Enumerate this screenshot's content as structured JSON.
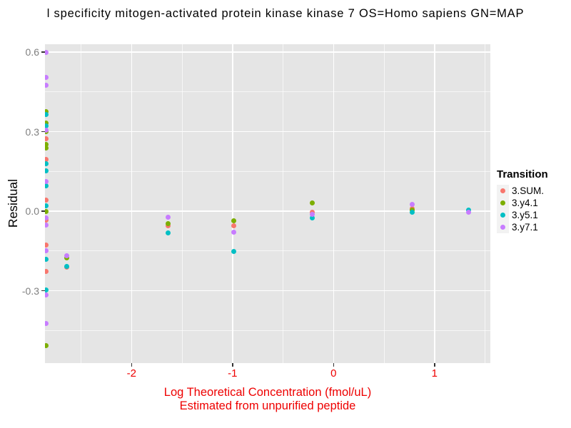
{
  "chart_data": {
    "type": "scatter",
    "title": "l specificity mitogen-activated protein kinase kinase 7 OS=Homo sapiens GN=MAP",
    "ylabel": "Residual",
    "xlabel_line1": "Log Theoretical Concentration (fmol/uL)",
    "xlabel_line2": "Estimated from unpurified peptide",
    "legend_title": "Transition",
    "legend_position": "right",
    "grid": "on",
    "xlim": [
      -2.857,
      1.553
    ],
    "ylim": [
      -0.573,
      0.63
    ],
    "x_ticks": [
      -2,
      -1,
      0,
      1
    ],
    "x_tick_labels": [
      "-2",
      "-1",
      "0",
      "1"
    ],
    "x_minor_ticks": [
      -2.5,
      -1.5,
      -0.5,
      0.5,
      1.5
    ],
    "y_ticks": [
      0.6,
      0.3,
      0.0,
      -0.3
    ],
    "y_tick_labels": [
      "0.6",
      "0.3",
      "0.0",
      "-0.3"
    ],
    "y_minor_ticks": [
      0.45,
      0.15,
      -0.15,
      -0.45
    ],
    "colors": {
      "panel_background": "#e5e5e5",
      "gridline": "#ffffff",
      "x_axis_text": "#ee0000",
      "y_axis_text": "#7f7f7f",
      "legend_key_background": "#f2f2f2"
    },
    "series": [
      {
        "name": "3.SUM.",
        "color": "#F8766D",
        "points": [
          [
            -2.85,
            0.274
          ],
          [
            -2.85,
            0.196
          ],
          [
            -2.85,
            0.043
          ],
          [
            -2.85,
            -0.033
          ],
          [
            -2.85,
            -0.127
          ],
          [
            -2.85,
            -0.226
          ],
          [
            -2.64,
            -0.212
          ],
          [
            -1.64,
            -0.054
          ],
          [
            -0.99,
            -0.054
          ],
          [
            -0.21,
            -0.005
          ],
          [
            0.78,
            0.011
          ]
        ]
      },
      {
        "name": "3.y4.1",
        "color": "#7CAE00",
        "points": [
          [
            -2.85,
            0.377
          ],
          [
            -2.85,
            0.332
          ],
          [
            -2.85,
            0.301
          ],
          [
            -2.85,
            0.253
          ],
          [
            -2.85,
            0.238
          ],
          [
            -2.85,
            -0.002
          ],
          [
            -2.85,
            -0.508
          ],
          [
            -2.64,
            -0.175
          ],
          [
            -1.64,
            -0.048
          ],
          [
            -0.99,
            -0.035
          ],
          [
            -0.21,
            0.03
          ],
          [
            0.78,
            0.005
          ]
        ]
      },
      {
        "name": "3.y5.1",
        "color": "#00BFC4",
        "points": [
          [
            -2.85,
            0.365
          ],
          [
            -2.85,
            0.323
          ],
          [
            -2.85,
            0.178
          ],
          [
            -2.85,
            0.151
          ],
          [
            -2.85,
            0.097
          ],
          [
            -2.85,
            0.021
          ],
          [
            -2.85,
            -0.181
          ],
          [
            -2.85,
            -0.298
          ],
          [
            -2.64,
            -0.207
          ],
          [
            -1.64,
            -0.083
          ],
          [
            -0.99,
            -0.151
          ],
          [
            -0.21,
            -0.024
          ],
          [
            0.78,
            -0.003
          ],
          [
            1.34,
            0.005
          ]
        ]
      },
      {
        "name": "3.y7.1",
        "color": "#C77CFF",
        "points": [
          [
            -2.85,
            0.599
          ],
          [
            -2.85,
            0.504
          ],
          [
            -2.85,
            0.475
          ],
          [
            -2.85,
            0.307
          ],
          [
            -2.85,
            0.113
          ],
          [
            -2.85,
            -0.024
          ],
          [
            -2.85,
            -0.051
          ],
          [
            -2.85,
            -0.15
          ],
          [
            -2.85,
            -0.316
          ],
          [
            -2.85,
            -0.423
          ],
          [
            -2.64,
            -0.169
          ],
          [
            -1.64,
            -0.022
          ],
          [
            -0.99,
            -0.078
          ],
          [
            -0.21,
            -0.011
          ],
          [
            0.78,
            0.027
          ],
          [
            1.34,
            -0.005
          ]
        ]
      }
    ]
  }
}
